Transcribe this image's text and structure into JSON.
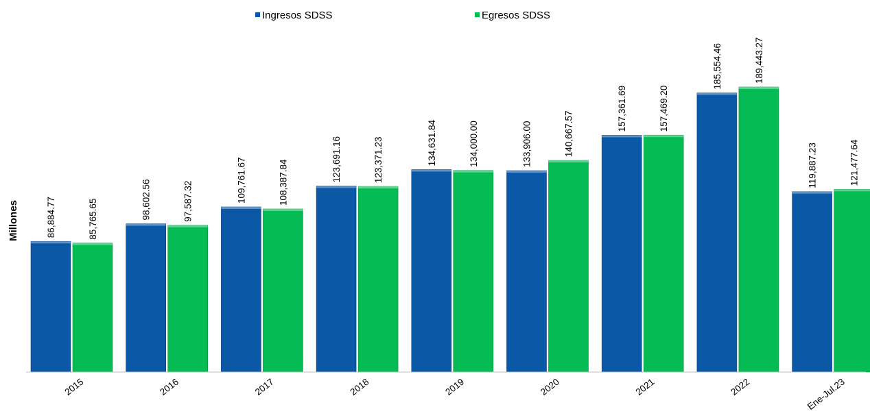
{
  "chart_data": {
    "type": "bar",
    "title": "",
    "xlabel": "",
    "ylabel": "Millones",
    "ylim": [
      0,
      189443.27
    ],
    "grid": false,
    "legend_position": "top",
    "categories": [
      "2015",
      "2016",
      "2017",
      "2018",
      "2019",
      "2020",
      "2021",
      "2022",
      "Ene-Jul.23"
    ],
    "series": [
      {
        "name": "Ingresos SDSS",
        "color": "#0b58a7",
        "values": [
          86884.77,
          98602.56,
          109761.67,
          123691.16,
          134631.84,
          133906.0,
          157361.69,
          185554.46,
          119887.23
        ],
        "labels": [
          "86,884.77",
          "98,602.56",
          "109,761.67",
          "123,691.16",
          "134,631.84",
          "133,906.00",
          "157,361.69",
          "185,554.46",
          "119,887.23"
        ]
      },
      {
        "name": "Egresos SDSS",
        "color": "#05bb53",
        "values": [
          85765.65,
          97587.32,
          108387.84,
          123371.23,
          134000.0,
          140667.57,
          157469.2,
          189443.27,
          121477.64
        ],
        "labels": [
          "85,765.65",
          "97,587.32",
          "108,387.84",
          "123,371.23",
          "134,000.00",
          "140,667.57",
          "157,469.20",
          "189,443.27",
          "121,477.64"
        ]
      }
    ]
  }
}
